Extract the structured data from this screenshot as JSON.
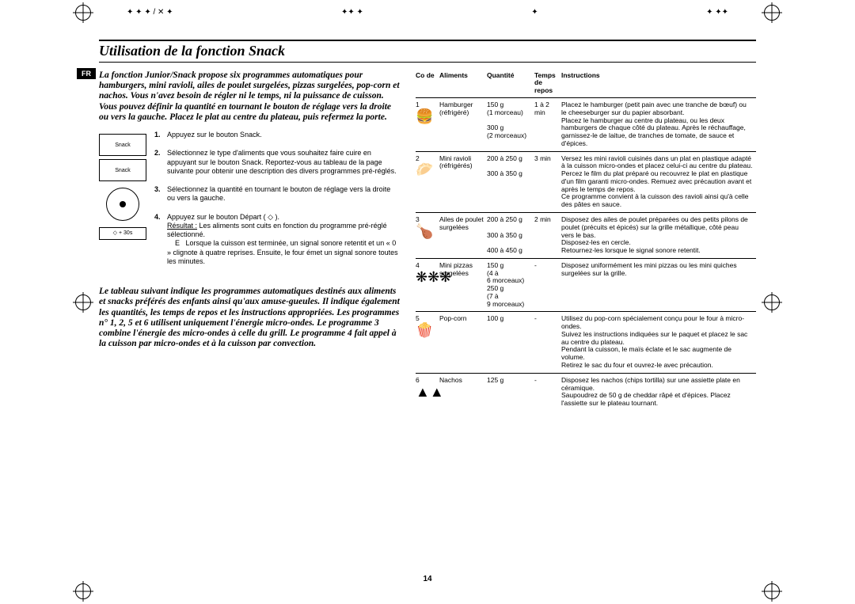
{
  "page": {
    "title": "Utilisation de la fonction Snack",
    "lang_tab": "FR",
    "page_number": "14"
  },
  "intro": "La fonction Junior/Snack propose six programmes automatiques pour hamburgers, mini ravioli, ailes de poulet surgelées, pizzas surgelées, pop-corn et nachos. Vous n'avez besoin de régler ni le temps, ni la puissance de cuisson. Vous pouvez définir la quantité en tournant le bouton de réglage vers la droite ou vers la gauche. Placez le plat au centre du plateau, puis refermez la porte.",
  "diagrams": {
    "snack1": "Snack",
    "snack2": "Snack",
    "depart": "◇ + 30s"
  },
  "steps": [
    {
      "num": "1.",
      "text": "Appuyez sur le bouton Snack."
    },
    {
      "num": "2.",
      "text": "Sélectionnez le type d'aliments que vous souhaitez faire cuire en appuyant sur le bouton Snack. Reportez-vous au tableau de la page suivante pour obtenir une description des divers programmes pré-réglés."
    },
    {
      "num": "3.",
      "text": "Sélectionnez la quantité en tournant le bouton de réglage vers la droite ou vers la gauche."
    },
    {
      "num": "4.",
      "text": "Appuyez sur le bouton Départ ( ◇ ).",
      "result_label": "Résultat :",
      "result": "Les aliments sont cuits en fonction du programme pré-réglé sélectionné.",
      "note_label": "E",
      "note": "Lorsque la cuisson est terminée, un signal sonore retentit et un « 0 » clignote à quatre reprises. Ensuite, le four émet un signal sonore toutes les minutes."
    }
  ],
  "para2": "Le tableau suivant indique les programmes automatiques destinés aux aliments et snacks préférés des enfants ainsi qu'aux amuse-gueules. Il indique également les quantités, les temps de repos et les instructions appropriées. Les programmes n° 1, 2, 5 et 6 utilisent uniquement l'énergie micro-ondes. Le programme 3 combine l'énergie des micro-ondes à celle du grill. Le programme 4 fait appel à la cuisson par micro-ondes et à la cuisson par convection.",
  "table": {
    "headers": {
      "code": "Co\nde",
      "aliments": "Aliments",
      "quantite": "Quantité",
      "temps": "Temps\nde\nrepos",
      "instructions": "Instructions"
    },
    "rows": [
      {
        "code": "1",
        "icon": "🍔",
        "aliments": "Hamburger (réfrigéré)",
        "quantite": "150 g\n(1 morceau)\n\n300 g\n(2 morceaux)",
        "temps": "1 à 2 min",
        "instructions": "Placez le hamburger (petit pain avec une tranche de bœuf) ou le cheeseburger sur du papier absorbant.\nPlacez le hamburger au centre du plateau, ou les deux hamburgers de chaque côté du plateau. Après le réchauffage, garnissez-le de laitue, de tranches de tomate, de sauce et d'épices."
      },
      {
        "code": "2",
        "icon": "🥟",
        "aliments": "Mini ravioli (réfrigérés)",
        "quantite": "200 à 250 g\n\n300 à 350 g",
        "temps": "3 min",
        "instructions": "Versez les mini ravioli cuisinés dans un plat en plastique adapté à la cuisson micro-ondes et placez celui-ci au centre du plateau.\nPercez le film du plat préparé ou recouvrez le plat en plastique d'un film garanti micro-ondes. Remuez avec précaution avant et après le temps de repos.\nCe programme convient à la cuisson des ravioli ainsi qu'à celle des pâtes en sauce."
      },
      {
        "code": "3",
        "icon": "🍗",
        "aliments": "Ailes de poulet surgelées",
        "quantite": "200 à 250 g\n\n300 à 350 g\n\n400 à 450 g",
        "temps": "2 min",
        "instructions": "Disposez des ailes de poulet préparées ou des petits pilons de poulet (précuits et épicés) sur la grille métallique, côté peau vers le bas.\nDisposez-les en cercle.\nRetournez-les lorsque le signal sonore retentit."
      },
      {
        "code": "4",
        "icon": "❋❋❋",
        "aliments": "Mini pizzas surgelées",
        "quantite": "150 g\n(4 à\n6 morceaux)\n250 g\n(7 à\n9 morceaux)",
        "temps": "-",
        "instructions": "Disposez uniformément les mini pizzas ou les mini quiches surgelées sur la grille."
      },
      {
        "code": "5",
        "icon": "🍿",
        "aliments": "Pop-corn",
        "quantite": "100 g",
        "temps": "-",
        "instructions": "Utilisez du pop-corn spécialement conçu pour le four à micro-ondes.\nSuivez les instructions indiquées sur le paquet et placez le sac au centre du plateau.\nPendant la cuisson, le maïs éclate et le sac augmente de volume.\nRetirez le sac du four et ouvrez-le avec précaution."
      },
      {
        "code": "6",
        "icon": "▲▲",
        "aliments": "Nachos",
        "quantite": "125 g",
        "temps": "-",
        "instructions": "Disposez les nachos (chips tortilla) sur une assiette plate en céramique.\nSaupoudrez de 50 g de cheddar râpé et d'épices. Placez l'assiette sur le plateau tournant."
      }
    ]
  },
  "colors": {
    "text": "#000000",
    "bg": "#ffffff"
  }
}
